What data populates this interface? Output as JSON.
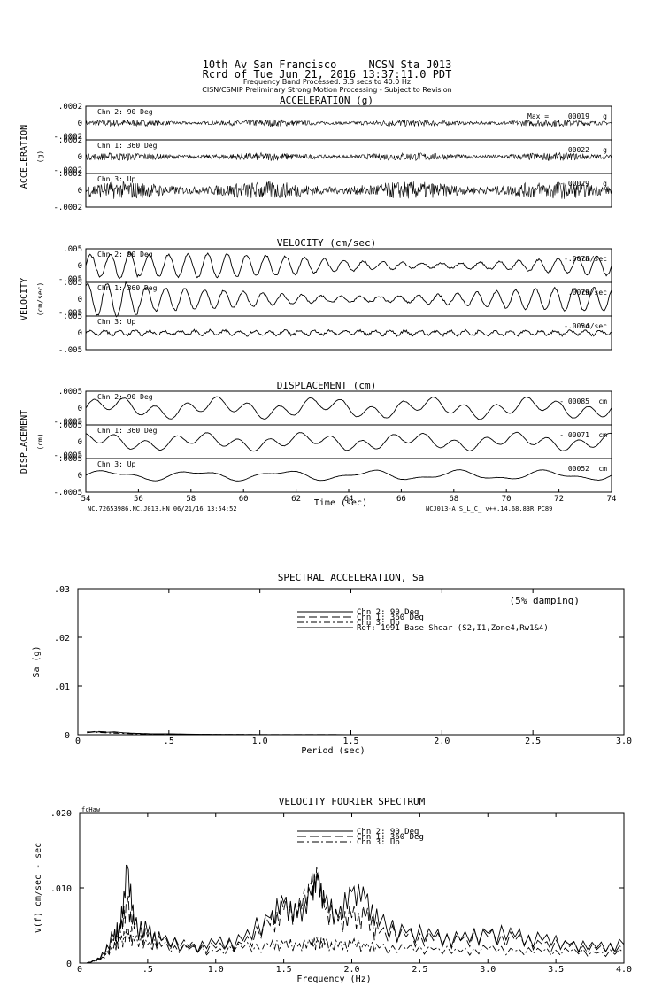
{
  "header": {
    "station": "10th Av San Francisco     NCSN Sta J013",
    "record": "Rcrd of Tue Jun 21, 2016 13:37:11.0 PDT",
    "band": "Frequency Band Processed: 3.3 secs to 40.0 Hz",
    "disclaimer": "CISN/CSMIP Preliminary Strong Motion Processing - Subject to Revision"
  },
  "time_series": {
    "xlabel": "Time (sec)",
    "xlim": [
      54,
      74
    ],
    "xticks": [
      "54",
      "56",
      "58",
      "60",
      "62",
      "64",
      "66",
      "68",
      "70",
      "72",
      "74"
    ],
    "footer_left": "NC.72653986.NC.J013.HN 06/21/16 13:54:52",
    "footer_right": "NCJ013-A  S_L_C_  v++.14.68.83R PC89",
    "panels": [
      {
        "key": "acc",
        "title": "ACCELERATION (g)",
        "side_label": "ACCELERATION",
        "unit_label": "(g)",
        "ylim": [
          -0.0002,
          0.0002
        ],
        "ytick_hi": ".0002",
        "ytick_mid": "0",
        "ytick_lo": "-.0002",
        "color": "#000000",
        "traces": [
          {
            "channel": "Chn 2: 90 Deg",
            "max_label": "Max =",
            "max": ".00019",
            "unit": "g",
            "amplitude": 0.00019,
            "character": "noise"
          },
          {
            "channel": "Chn 1: 360 Deg",
            "max_label": "",
            "max": ".00022",
            "unit": "g",
            "amplitude": 0.00022,
            "character": "noise"
          },
          {
            "channel": "Chn 3: Up",
            "max_label": "",
            "max": "-.00029",
            "unit": "g",
            "amplitude": 0.00029,
            "character": "noise"
          }
        ]
      },
      {
        "key": "vel",
        "title": "VELOCITY (cm/sec)",
        "side_label": "VELOCITY",
        "unit_label": "(cm/sec)",
        "ylim": [
          -0.005,
          0.005
        ],
        "ytick_hi": ".005",
        "ytick_mid": "0",
        "ytick_lo": "-.005",
        "color": "#000000",
        "traces": [
          {
            "channel": "Chn 2: 90 Deg",
            "max_label": "",
            "max": "-.0078",
            "unit": "cm/sec",
            "amplitude": 0.0078,
            "character": "oscillation"
          },
          {
            "channel": "Chn 1: 360 Deg",
            "max_label": "",
            "max": ".0079",
            "unit": "cm/sec",
            "amplitude": 0.0079,
            "character": "oscillation"
          },
          {
            "channel": "Chn 3: Up",
            "max_label": "",
            "max": "-.0054",
            "unit": "cm/sec",
            "amplitude": 0.0054,
            "character": "mixed"
          }
        ]
      },
      {
        "key": "disp",
        "title": "DISPLACEMENT (cm)",
        "side_label": "DISPLACEMENT",
        "unit_label": "(cm)",
        "ylim": [
          -0.0005,
          0.0005
        ],
        "ytick_hi": ".0005",
        "ytick_mid": "0",
        "ytick_lo": "-.0005",
        "color": "#000000",
        "traces": [
          {
            "channel": "Chn 2: 90 Deg",
            "max_label": "",
            "max": "-.00085",
            "unit": "cm",
            "amplitude": 0.00085,
            "character": "slow"
          },
          {
            "channel": "Chn 1: 360 Deg",
            "max_label": "",
            "max": "-.00071",
            "unit": "cm",
            "amplitude": 0.00071,
            "character": "slow"
          },
          {
            "channel": "Chn 3: Up",
            "max_label": "",
            "max": ".00052",
            "unit": "cm",
            "amplitude": 0.00052,
            "character": "veryslow"
          }
        ]
      }
    ]
  },
  "chart_data": [
    {
      "type": "line",
      "title": "SPECTRAL ACCELERATION, Sa",
      "xlabel": "Period (sec)",
      "ylabel": "Sa (g)",
      "xlim": [
        0,
        3.0
      ],
      "ylim": [
        0,
        0.03
      ],
      "xticks": [
        "0",
        ".5",
        "1.0",
        "1.5",
        "2.0",
        "2.5",
        "3.0"
      ],
      "xtick_values": [
        0,
        0.5,
        1.0,
        1.5,
        2.0,
        2.5,
        3.0
      ],
      "yticks": [
        "0",
        ".01",
        ".02",
        ".03"
      ],
      "ytick_values": [
        0,
        0.01,
        0.02,
        0.03
      ],
      "annotation": "(5% damping)",
      "legend_position": "top-center",
      "series": [
        {
          "name": "Chn 2: 90 Deg",
          "dash": "",
          "x": [
            0.05,
            0.1,
            0.15,
            0.2,
            0.25,
            0.3,
            0.4,
            0.5,
            0.6,
            0.7,
            0.8,
            1.0,
            1.5,
            2.0,
            2.5,
            3.0
          ],
          "y": [
            0.0004,
            0.0006,
            0.0005,
            0.0006,
            0.0004,
            0.0003,
            0.0002,
            0.0002,
            0.00012,
            8e-05,
            5e-05,
            3e-05,
            2e-05,
            1e-05,
            1e-05,
            1e-05
          ]
        },
        {
          "name": "Chn 1: 360 Deg",
          "dash": "9 4",
          "x": [
            0.05,
            0.1,
            0.15,
            0.2,
            0.25,
            0.3,
            0.4,
            0.5,
            0.6,
            0.7,
            0.8,
            1.0,
            1.5,
            2.0,
            2.5,
            3.0
          ],
          "y": [
            0.0005,
            0.0007,
            0.0006,
            0.0005,
            0.0004,
            0.0003,
            0.0002,
            0.00015,
            0.0001,
            7e-05,
            5e-05,
            3e-05,
            2e-05,
            1e-05,
            1e-05,
            1e-05
          ]
        },
        {
          "name": "Chn 3: Up",
          "dash": "7 3 2 3",
          "x": [
            0.05,
            0.1,
            0.15,
            0.2,
            0.25,
            0.3,
            0.4,
            0.5,
            0.6,
            0.7,
            0.8,
            1.0,
            1.5,
            2.0,
            2.5,
            3.0
          ],
          "y": [
            0.0006,
            0.0005,
            0.0004,
            0.0003,
            0.00025,
            0.0002,
            0.00015,
            0.0001,
            8e-05,
            6e-05,
            4e-05,
            2e-05,
            1e-05,
            1e-05,
            1e-05,
            1e-05
          ]
        },
        {
          "name": "Ref: 1991 Base Shear (S2,I1,Zone4,Rw1&4)",
          "dash": "",
          "x": [],
          "y": []
        }
      ]
    },
    {
      "type": "line",
      "title": "VELOCITY FOURIER SPECTRUM",
      "xlabel": "Frequency (Hz)",
      "ylabel": "V(f)  cm/sec - sec",
      "corner_label": "fcHaw",
      "xlim": [
        0,
        4.0
      ],
      "ylim": [
        0,
        0.02
      ],
      "xticks": [
        "0",
        ".5",
        "1.0",
        "1.5",
        "2.0",
        "2.5",
        "3.0",
        "3.5",
        "4.0"
      ],
      "xtick_values": [
        0,
        0.5,
        1.0,
        1.5,
        2.0,
        2.5,
        3.0,
        3.5,
        4.0
      ],
      "yticks": [
        "0",
        ".010",
        ".020"
      ],
      "ytick_values": [
        0,
        0.01,
        0.02
      ],
      "legend_position": "top-center",
      "series": [
        {
          "name": "Chn 2: 90 Deg",
          "dash": "",
          "x": [
            0.05,
            0.15,
            0.25,
            0.3,
            0.35,
            0.4,
            0.5,
            0.6,
            0.8,
            1.0,
            1.2,
            1.4,
            1.5,
            1.6,
            1.7,
            1.75,
            1.8,
            1.9,
            2.0,
            2.1,
            2.2,
            2.4,
            2.6,
            2.8,
            3.0,
            3.2,
            3.4,
            3.6,
            3.8,
            4.0
          ],
          "y": [
            0.0,
            0.0006,
            0.0035,
            0.0045,
            0.013,
            0.005,
            0.004,
            0.003,
            0.002,
            0.0025,
            0.003,
            0.006,
            0.008,
            0.006,
            0.009,
            0.011,
            0.008,
            0.006,
            0.0095,
            0.0085,
            0.005,
            0.004,
            0.0035,
            0.003,
            0.004,
            0.0035,
            0.003,
            0.0025,
            0.002,
            0.0025
          ]
        },
        {
          "name": "Chn 1: 360 Deg",
          "dash": "10 4",
          "x": [
            0.05,
            0.15,
            0.25,
            0.3,
            0.35,
            0.4,
            0.5,
            0.6,
            0.8,
            1.0,
            1.2,
            1.4,
            1.5,
            1.6,
            1.7,
            1.75,
            1.8,
            1.9,
            2.0,
            2.1,
            2.2,
            2.4,
            2.6,
            2.8,
            3.0,
            3.2,
            3.4,
            3.6,
            3.8,
            4.0
          ],
          "y": [
            0.0,
            0.0005,
            0.003,
            0.004,
            0.008,
            0.0045,
            0.0035,
            0.003,
            0.0022,
            0.002,
            0.0025,
            0.005,
            0.007,
            0.0065,
            0.0105,
            0.0113,
            0.007,
            0.0055,
            0.006,
            0.006,
            0.004,
            0.0035,
            0.003,
            0.003,
            0.0035,
            0.003,
            0.0025,
            0.0022,
            0.0018,
            0.002
          ]
        },
        {
          "name": "Chn 3: Up",
          "dash": "8 3 2 3",
          "x": [
            0.05,
            0.15,
            0.25,
            0.3,
            0.35,
            0.4,
            0.5,
            0.6,
            0.8,
            1.0,
            1.2,
            1.4,
            1.5,
            1.6,
            1.7,
            1.75,
            1.8,
            1.9,
            2.0,
            2.1,
            2.2,
            2.4,
            2.6,
            2.8,
            3.0,
            3.2,
            3.4,
            3.6,
            3.8,
            4.0
          ],
          "y": [
            0.0,
            0.0004,
            0.002,
            0.003,
            0.0035,
            0.003,
            0.0025,
            0.0022,
            0.0018,
            0.0015,
            0.002,
            0.0022,
            0.0025,
            0.0022,
            0.0025,
            0.0028,
            0.0025,
            0.0022,
            0.0025,
            0.0022,
            0.002,
            0.0018,
            0.0018,
            0.0015,
            0.0018,
            0.0016,
            0.0015,
            0.0015,
            0.0013,
            0.0014
          ]
        }
      ]
    }
  ]
}
